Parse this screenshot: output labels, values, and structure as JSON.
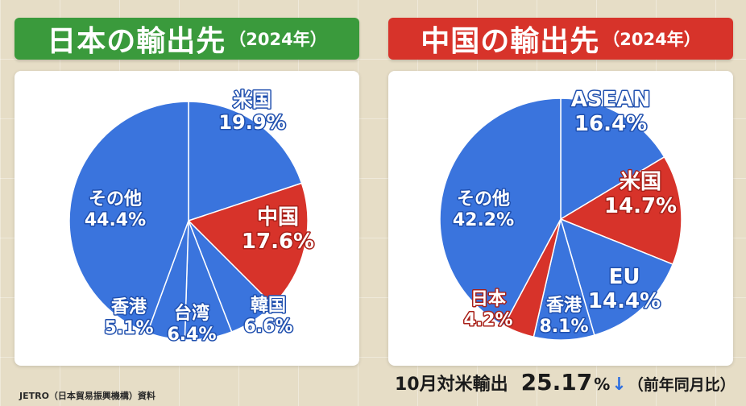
{
  "left_header": {
    "title": "日本の輸出先",
    "year": "（2024年）"
  },
  "right_header": {
    "title": "中国の輸出先",
    "year": "（2024年）"
  },
  "colors": {
    "blue": "#3a74dd",
    "red": "#d7332a",
    "green": "#3a9a3c",
    "divider": "#ffffff"
  },
  "chart_data": [
    {
      "type": "pie",
      "title": "日本の輸出先（2024年）",
      "start_angle_deg": 0,
      "direction": "clockwise",
      "slices": [
        {
          "label": "米国",
          "value": 19.9,
          "text": "19.9%",
          "color": "#3a74dd"
        },
        {
          "label": "中国",
          "value": 17.6,
          "text": "17.6%",
          "color": "#d7332a"
        },
        {
          "label": "韓国",
          "value": 6.6,
          "text": "6.6%",
          "color": "#3a74dd"
        },
        {
          "label": "台湾",
          "value": 6.4,
          "text": "6.4%",
          "color": "#3a74dd"
        },
        {
          "label": "香港",
          "value": 5.1,
          "text": "5.1%",
          "color": "#3a74dd"
        },
        {
          "label": "その他",
          "value": 44.4,
          "text": "44.4%",
          "color": "#3a74dd"
        }
      ]
    },
    {
      "type": "pie",
      "title": "中国の輸出先（2024年）",
      "start_angle_deg": 0,
      "direction": "clockwise",
      "slices": [
        {
          "label": "ASEAN",
          "value": 16.4,
          "text": "16.4%",
          "color": "#3a74dd"
        },
        {
          "label": "米国",
          "value": 14.7,
          "text": "14.7%",
          "color": "#d7332a"
        },
        {
          "label": "EU",
          "value": 14.4,
          "text": "14.4%",
          "color": "#3a74dd"
        },
        {
          "label": "香港",
          "value": 8.1,
          "text": "8.1%",
          "color": "#3a74dd"
        },
        {
          "label": "日本",
          "value": 4.2,
          "text": "4.2%",
          "color": "#d7332a"
        },
        {
          "label": "その他",
          "value": 42.2,
          "text": "42.2%",
          "color": "#3a74dd"
        }
      ]
    }
  ],
  "footer": {
    "label": "10月対米輸出",
    "value": "25.17",
    "unit": "%",
    "arrow": "↓",
    "note": "（前年同月比）"
  },
  "source": "JETRO（日本貿易振興機構）資料"
}
